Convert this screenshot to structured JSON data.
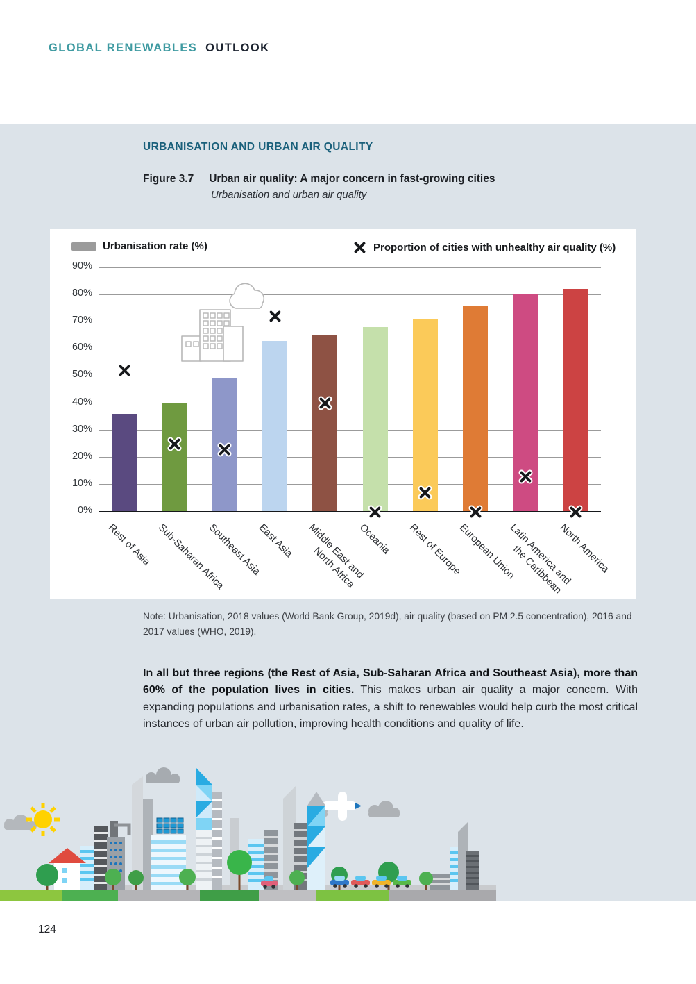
{
  "header": {
    "brand_primary": "GLOBAL RENEWABLES",
    "brand_secondary": "OUTLOOK"
  },
  "section": {
    "title": "URBANISATION AND URBAN AIR QUALITY"
  },
  "figure": {
    "label": "Figure 3.7",
    "title": "Urban air quality: A major concern in fast-growing cities",
    "subtitle": "Urbanisation and urban air quality"
  },
  "chart_data": {
    "type": "bar",
    "title": "",
    "categories": [
      "Rest of Asia",
      "Sub-Saharan Africa",
      "Southeast Asia",
      "East Asia",
      "Middle East and North Africa",
      "Oceania",
      "Rest of Europe",
      "European Union",
      "Latin America and the Caribbean",
      "North America"
    ],
    "category_lines": [
      [
        "Rest of Asia"
      ],
      [
        "Sub-Saharan Africa"
      ],
      [
        "Southeast Asia"
      ],
      [
        "East Asia"
      ],
      [
        "Middle East and",
        "North Africa"
      ],
      [
        "Oceania"
      ],
      [
        "Rest of Europe"
      ],
      [
        "European Union"
      ],
      [
        "Latin America and",
        "the Caribbean"
      ],
      [
        "North America"
      ]
    ],
    "series": [
      {
        "name": "Urbanisation rate (%)",
        "type": "bar",
        "values": [
          36,
          40,
          49,
          63,
          65,
          68,
          71,
          76,
          80,
          82
        ],
        "bar_colors": [
          "#5a4a80",
          "#6f9a40",
          "#8e97c9",
          "#bcd5ef",
          "#8e5244",
          "#c5e0ab",
          "#fbca59",
          "#df7b35",
          "#ce4b82",
          "#cc4343"
        ]
      },
      {
        "name": "Proportion of cities with unhealthy air quality (%)",
        "type": "scatter",
        "marker": "x",
        "values": [
          52,
          25,
          23,
          72,
          40,
          0,
          7,
          0,
          13,
          0
        ]
      }
    ],
    "ylim": [
      0,
      90
    ],
    "ytick_step": 10,
    "ytick_suffix": "%",
    "grid": true,
    "legend_position": "top"
  },
  "note": {
    "text": "Note: Urbanisation, 2018 values (World Bank Group, 2019d), air quality (based on PM 2.5 concentration), 2016 and 2017 values (WHO, 2019)."
  },
  "body": {
    "lead_bold": "In all but three regions (the Rest of Asia, Sub-Saharan Africa and Southeast Asia), more than 60% of the population lives in cities.",
    "rest": " This makes urban air quality a major concern. With expanding populations and urbanisation rates, a shift to renewables would help curb the most critical instances of urban air pollution, improving health conditions and quality of life."
  },
  "footer": {
    "page_number": "124"
  },
  "colors": {
    "band_background": "#dce3e9",
    "panel_background": "#ffffff",
    "section_title": "#1a607b",
    "brand_teal": "#3e9aa1",
    "gridline": "#9b9b9b",
    "axis_line": "#16181b",
    "legend_swatch": "#9b9b9b",
    "marker": "#17191c"
  },
  "icons": {
    "x_marker": "x-marker-icon",
    "cityscape": "cityscape-illustration",
    "buildings_cloud": "buildings-cloud-illustration"
  }
}
